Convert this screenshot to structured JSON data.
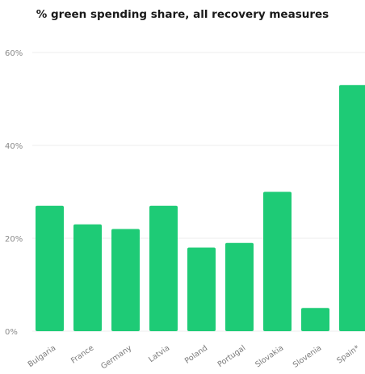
{
  "chart_data": {
    "type": "bar",
    "title": "% green spending share, all recovery measures",
    "categories": [
      "Bulgaria",
      "France",
      "Germany",
      "Latvia",
      "Poland",
      "Portugal",
      "Slovakia",
      "Slovenia",
      "Spain*"
    ],
    "values": [
      27,
      23,
      22,
      27,
      18,
      19,
      30,
      5,
      53
    ],
    "ylim": [
      0,
      60
    ],
    "yticks": [
      0,
      20,
      40,
      60
    ],
    "ytick_labels": [
      "0%",
      "20%",
      "40%",
      "60%"
    ],
    "grid": true,
    "bar_color": "#1ecb76",
    "grid_color": "#ececec"
  }
}
